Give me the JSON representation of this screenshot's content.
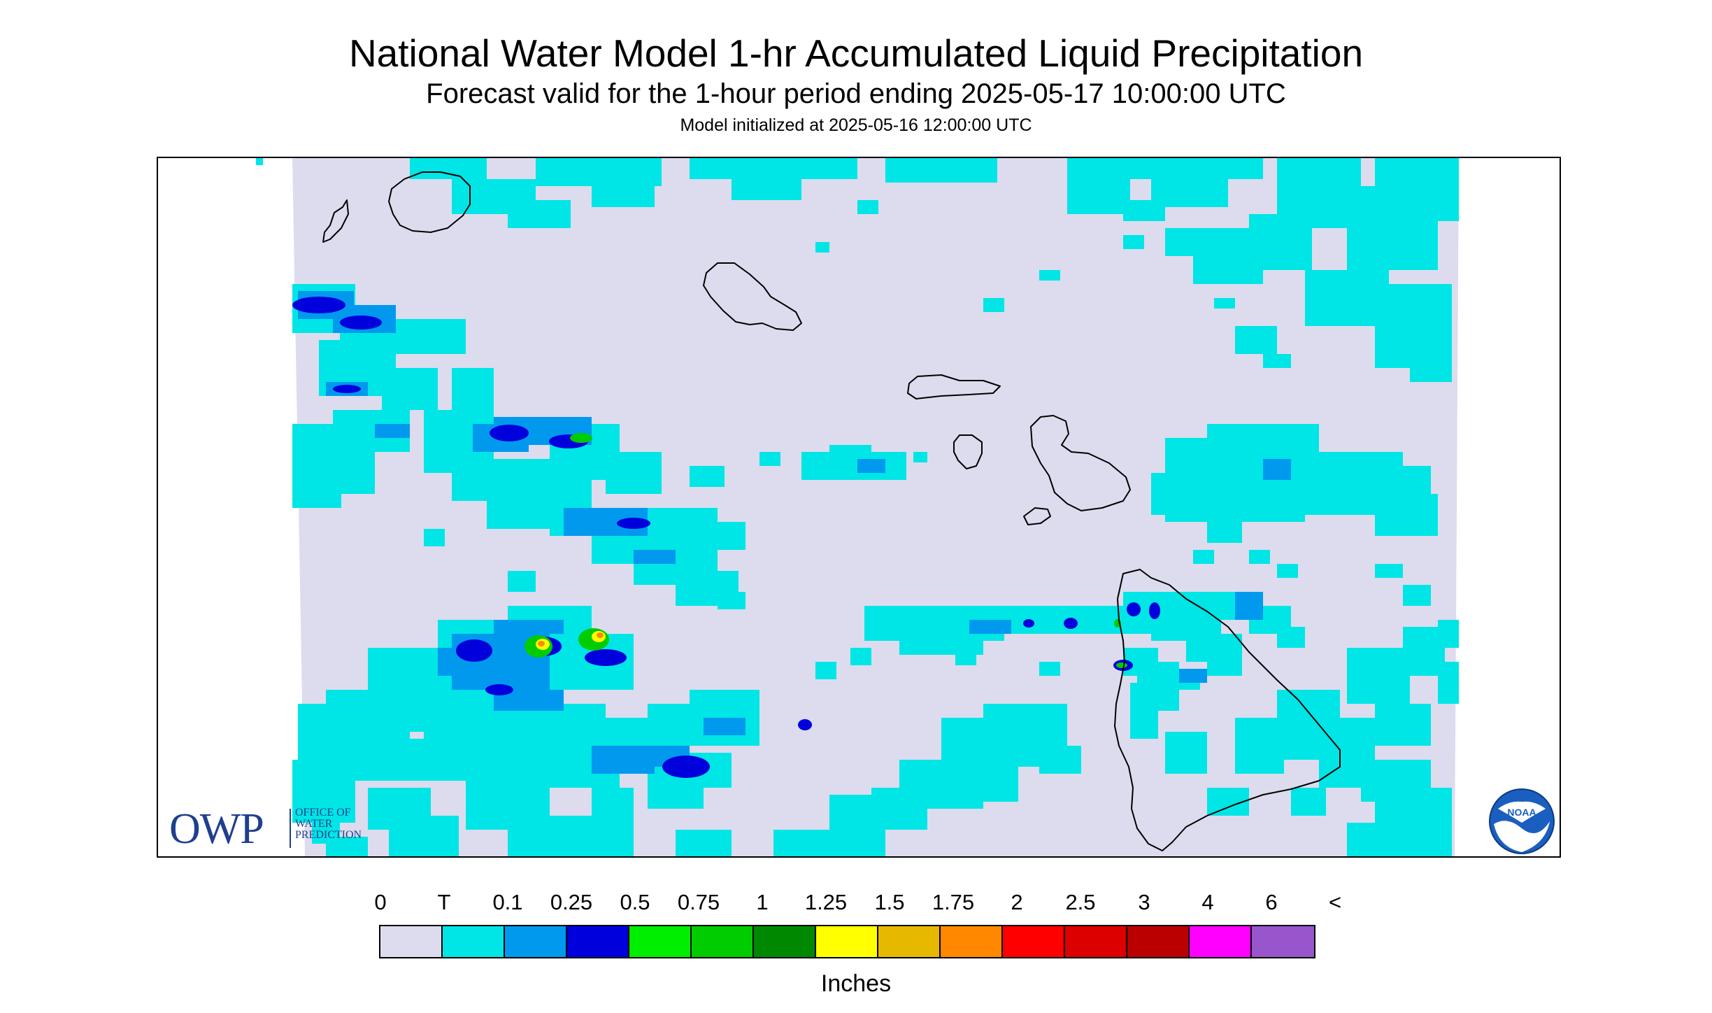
{
  "header": {
    "title": "National Water Model 1-hr Accumulated Liquid Precipitation",
    "subtitle": "Forecast valid for the 1-hour period ending 2025-05-17 10:00:00 UTC",
    "init": "Model initialized at 2025-05-16 12:00:00 UTC"
  },
  "logos": {
    "owp_mark": "OWP",
    "owp_lines": [
      "OFFICE OF",
      "WATER",
      "PREDICTION"
    ],
    "noaa_mark": "NOAA"
  },
  "legend": {
    "labels": [
      "0",
      "T",
      "0.1",
      "0.25",
      "0.5",
      "0.75",
      "1",
      "1.25",
      "1.5",
      "1.75",
      "2",
      "2.5",
      "3",
      "4",
      "6",
      "<"
    ],
    "colors": [
      "#dcdcee",
      "#00e5e5",
      "#0099ee",
      "#0000dd",
      "#00ee00",
      "#00cc00",
      "#008800",
      "#ffff00",
      "#e6b800",
      "#ff8800",
      "#ff0000",
      "#dd0000",
      "#bb0000",
      "#ff00ff",
      "#9955cc"
    ],
    "units": "Inches"
  },
  "colors": {
    "background_precip": "#dcdcee",
    "trace": "#00e5e5",
    "light": "#0099ee",
    "moderate": "#0000dd",
    "heavy_green": "#00cc00",
    "heavy_yellow": "#ffff00",
    "heavy_orange": "#ff8800",
    "coastline": "#000000",
    "owp_blue": "#1f3f8f",
    "noaa_blue": "#1a5fbf"
  }
}
